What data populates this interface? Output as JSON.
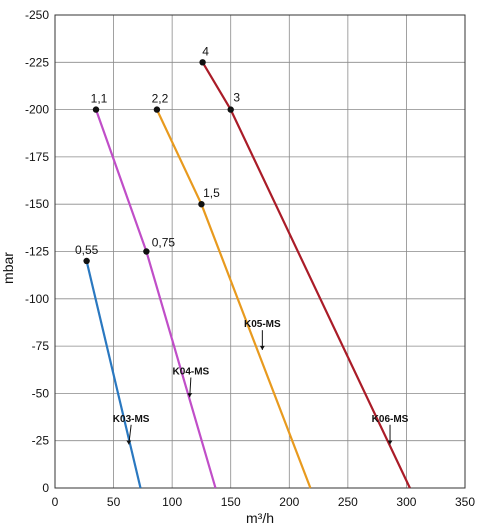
{
  "chart_data": {
    "type": "line",
    "xlabel": "m³/h",
    "ylabel": "mbar",
    "xlim": [
      0,
      350
    ],
    "ylim": [
      0,
      -250
    ],
    "x_ticks": [
      0,
      50,
      100,
      150,
      200,
      250,
      300,
      350
    ],
    "y_ticks": [
      0,
      -25,
      -50,
      -75,
      -100,
      -125,
      -150,
      -175,
      -200,
      -225,
      -250
    ],
    "grid": true,
    "series": [
      {
        "name": "K03-MS",
        "color": "#2a78c0",
        "points": [
          [
            73,
            0
          ],
          [
            27,
            -120
          ]
        ],
        "markers": [
          {
            "x": 27,
            "y": -120,
            "label": "0,55"
          }
        ]
      },
      {
        "name": "K04-MS",
        "color": "#c04ec8",
        "points": [
          [
            137,
            0
          ],
          [
            78,
            -125
          ],
          [
            35,
            -200
          ]
        ],
        "markers": [
          {
            "x": 78,
            "y": -125,
            "label": "0,75"
          },
          {
            "x": 35,
            "y": -200,
            "label": "1,1"
          }
        ]
      },
      {
        "name": "K05-MS",
        "color": "#e89a1e",
        "points": [
          [
            218,
            0
          ],
          [
            125,
            -150
          ],
          [
            87,
            -200
          ]
        ],
        "markers": [
          {
            "x": 125,
            "y": -150,
            "label": "1,5"
          },
          {
            "x": 87,
            "y": -200,
            "label": "2,2"
          }
        ]
      },
      {
        "name": "K06-MS",
        "color": "#aa1c28",
        "points": [
          [
            303,
            0
          ],
          [
            150,
            -200
          ],
          [
            126,
            -225
          ]
        ],
        "markers": [
          {
            "x": 150,
            "y": -200,
            "label": "3"
          },
          {
            "x": 126,
            "y": -225,
            "label": "4"
          }
        ]
      }
    ],
    "curve_labels": [
      {
        "text": "K03-MS",
        "x": 65,
        "y": -35,
        "pointer": [
          63,
          -23
        ]
      },
      {
        "text": "K04-MS",
        "x": 116,
        "y": -60,
        "pointer": [
          115,
          -48
        ]
      },
      {
        "text": "K05-MS",
        "x": 177,
        "y": -85,
        "pointer": [
          177,
          -73
        ]
      },
      {
        "text": "K06-MS",
        "x": 286,
        "y": -35,
        "pointer": [
          286,
          -23
        ]
      }
    ]
  }
}
